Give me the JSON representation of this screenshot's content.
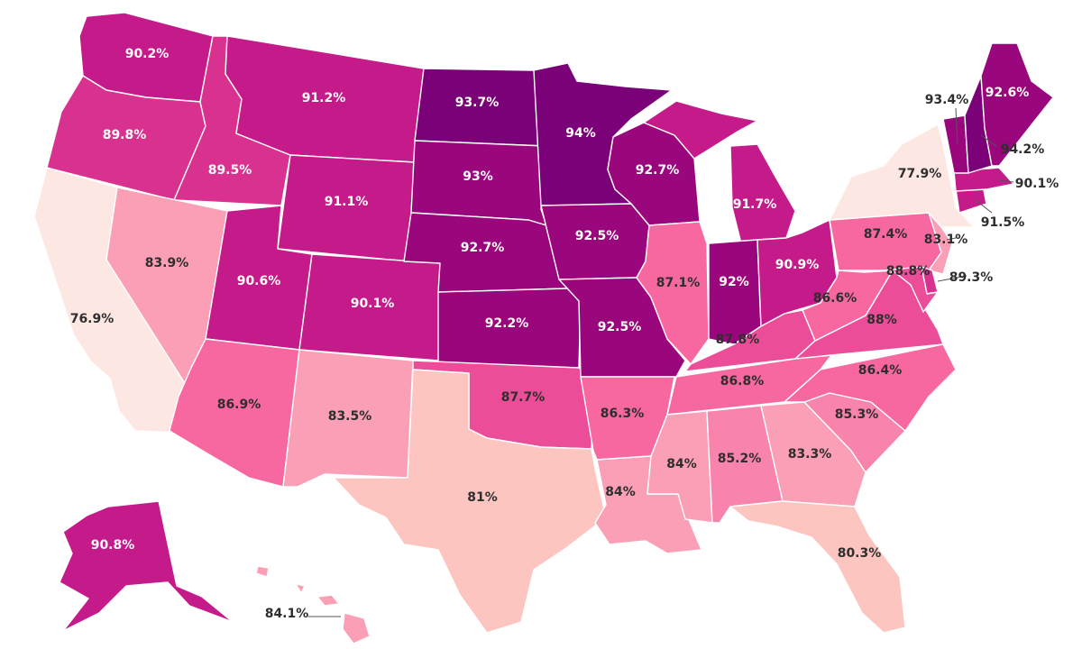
{
  "map": {
    "color_scale": [
      {
        "min": 93.5,
        "color": "#7a0177"
      },
      {
        "min": 92.0,
        "color": "#9a077c"
      },
      {
        "min": 90.0,
        "color": "#c51b8a"
      },
      {
        "min": 89.0,
        "color": "#d9318f"
      },
      {
        "min": 87.5,
        "color": "#ec4d98"
      },
      {
        "min": 86.0,
        "color": "#f768a1"
      },
      {
        "min": 84.5,
        "color": "#f884ad"
      },
      {
        "min": 83.0,
        "color": "#fa9fb5"
      },
      {
        "min": 79.0,
        "color": "#fcc5c0"
      },
      {
        "min": 0,
        "color": "#fde7e3"
      }
    ],
    "states": [
      {
        "id": "WA",
        "value": 90.2,
        "label": "90.2%"
      },
      {
        "id": "OR",
        "value": 89.8,
        "label": "89.8%"
      },
      {
        "id": "CA",
        "value": 76.9,
        "label": "76.9%"
      },
      {
        "id": "ID",
        "value": 89.5,
        "label": "89.5%"
      },
      {
        "id": "NV",
        "value": 83.9,
        "label": "83.9%"
      },
      {
        "id": "MT",
        "value": 91.2,
        "label": "91.2%"
      },
      {
        "id": "WY",
        "value": 91.1,
        "label": "91.1%"
      },
      {
        "id": "UT",
        "value": 90.6,
        "label": "90.6%"
      },
      {
        "id": "CO",
        "value": 90.1,
        "label": "90.1%"
      },
      {
        "id": "AZ",
        "value": 86.9,
        "label": "86.9%"
      },
      {
        "id": "NM",
        "value": 83.5,
        "label": "83.5%"
      },
      {
        "id": "ND",
        "value": 93.7,
        "label": "93.7%"
      },
      {
        "id": "SD",
        "value": 93.0,
        "label": "93%"
      },
      {
        "id": "NE",
        "value": 92.7,
        "label": "92.7%"
      },
      {
        "id": "KS",
        "value": 92.2,
        "label": "92.2%"
      },
      {
        "id": "OK",
        "value": 87.7,
        "label": "87.7%"
      },
      {
        "id": "TX",
        "value": 81.0,
        "label": "81%"
      },
      {
        "id": "MN",
        "value": 94.0,
        "label": "94%"
      },
      {
        "id": "IA",
        "value": 92.5,
        "label": "92.5%"
      },
      {
        "id": "MO",
        "value": 92.5,
        "label": "92.5%"
      },
      {
        "id": "AR",
        "value": 86.3,
        "label": "86.3%"
      },
      {
        "id": "LA",
        "value": 84.0,
        "label": "84%"
      },
      {
        "id": "WI",
        "value": 92.7,
        "label": "92.7%"
      },
      {
        "id": "IL",
        "value": 87.1,
        "label": "87.1%"
      },
      {
        "id": "MI",
        "value": 91.7,
        "label": "91.7%"
      },
      {
        "id": "IN",
        "value": 92.0,
        "label": "92%"
      },
      {
        "id": "OH",
        "value": 90.9,
        "label": "90.9%"
      },
      {
        "id": "KY",
        "value": 87.8,
        "label": "87.8%"
      },
      {
        "id": "TN",
        "value": 86.8,
        "label": "86.8%"
      },
      {
        "id": "MS",
        "value": 84.0,
        "label": "84%"
      },
      {
        "id": "AL",
        "value": 85.2,
        "label": "85.2%"
      },
      {
        "id": "GA",
        "value": 83.3,
        "label": "83.3%"
      },
      {
        "id": "FL",
        "value": 80.3,
        "label": "80.3%"
      },
      {
        "id": "SC",
        "value": 85.3,
        "label": "85.3%"
      },
      {
        "id": "NC",
        "value": 86.4,
        "label": "86.4%"
      },
      {
        "id": "VA",
        "value": 88.0,
        "label": "88%"
      },
      {
        "id": "WV",
        "value": 86.6,
        "label": "86.6%"
      },
      {
        "id": "PA",
        "value": 87.4,
        "label": "87.4%"
      },
      {
        "id": "NY",
        "value": 77.9,
        "label": "77.9%"
      },
      {
        "id": "NJ",
        "value": 83.1,
        "label": "83.1%"
      },
      {
        "id": "DE",
        "value": 89.3,
        "label": "89.3%"
      },
      {
        "id": "MD",
        "value": 88.8,
        "label": "88.8%"
      },
      {
        "id": "CT",
        "value": 91.5,
        "label": "91.5%"
      },
      {
        "id": "MA",
        "value": 90.1,
        "label": "90.1%"
      },
      {
        "id": "VT",
        "value": 93.4,
        "label": "93.4%"
      },
      {
        "id": "NH",
        "value": 94.2,
        "label": "94.2%"
      },
      {
        "id": "ME",
        "value": 92.6,
        "label": "92.6%"
      },
      {
        "id": "AK",
        "value": 90.8,
        "label": "90.8%"
      },
      {
        "id": "HI",
        "value": 84.1,
        "label": "84.1%"
      }
    ]
  }
}
